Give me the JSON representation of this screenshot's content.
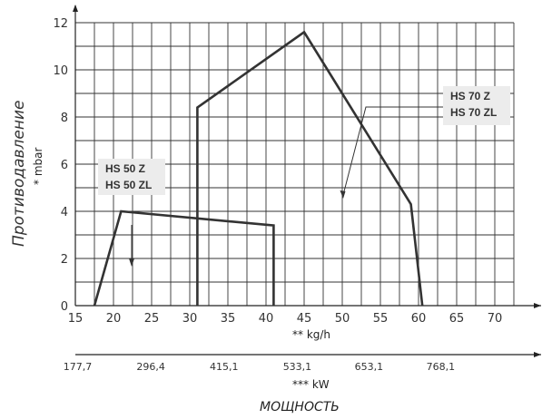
{
  "chart_data": {
    "type": "line",
    "y_label": "Противодавление",
    "y_unit": "* mbar",
    "x_unit": "** kg/h",
    "x2_unit": "*** kW",
    "x_title": "МОЩНОСТЬ",
    "xlim": [
      15,
      75
    ],
    "ylim": [
      0,
      12
    ],
    "x_ticks": [
      "15",
      "20",
      "25",
      "30",
      "35",
      "40",
      "45",
      "50",
      "55",
      "60",
      "65",
      "70"
    ],
    "y_ticks": [
      "0",
      "2",
      "4",
      "6",
      "8",
      "10",
      "12"
    ],
    "kw_ticks": [
      {
        "label": "177,7",
        "x": 15.3
      },
      {
        "label": "296,4",
        "x": 24.9
      },
      {
        "label": "415,1",
        "x": 34.5
      },
      {
        "label": "533,1",
        "x": 44.1
      },
      {
        "label": "653,1",
        "x": 53.5
      },
      {
        "label": "768,1",
        "x": 62.9
      }
    ],
    "grid": true,
    "series": [
      {
        "name": "HS 50 Z / HS 50 ZL",
        "points": [
          [
            17.5,
            0
          ],
          [
            21,
            4.0
          ],
          [
            41,
            3.4
          ],
          [
            41,
            0
          ]
        ],
        "label_lines": [
          "HS 50 Z",
          "HS 50 ZL"
        ]
      },
      {
        "name": "HS 70 Z / HS 70 ZL",
        "points": [
          [
            31,
            0
          ],
          [
            31,
            8.4
          ],
          [
            45,
            11.6
          ],
          [
            59,
            4.3
          ],
          [
            60.5,
            0
          ]
        ],
        "label_lines": [
          "HS 70 Z",
          "HS 70 ZL"
        ]
      }
    ]
  }
}
